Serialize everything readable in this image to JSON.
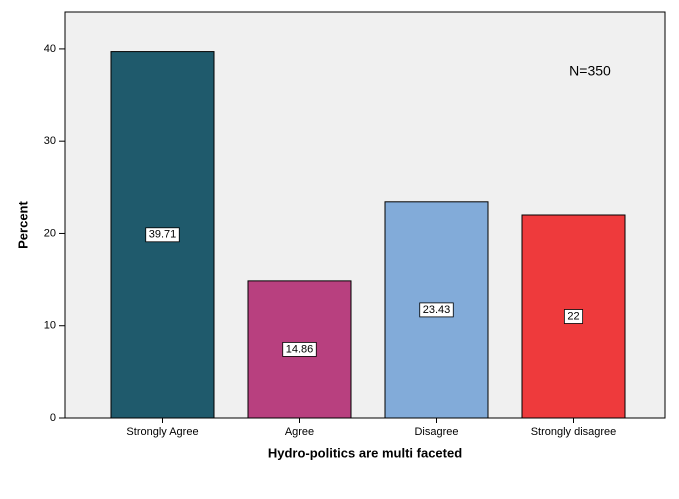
{
  "chart_data": {
    "type": "bar",
    "x_label": "Hydro-politics are multi faceted",
    "y_label": "Percent",
    "annotation": "N=350",
    "categories": [
      "Strongly Agree",
      "Agree",
      "Disagree",
      "Strongly disagree"
    ],
    "values": [
      39.71,
      14.86,
      23.43,
      22
    ],
    "colors": [
      "#1f5a6c",
      "#b8407f",
      "#82abd9",
      "#ee3a3c"
    ],
    "ylim": [
      0,
      44
    ],
    "yticks": [
      0,
      10,
      20,
      30,
      40
    ],
    "grid": false
  }
}
